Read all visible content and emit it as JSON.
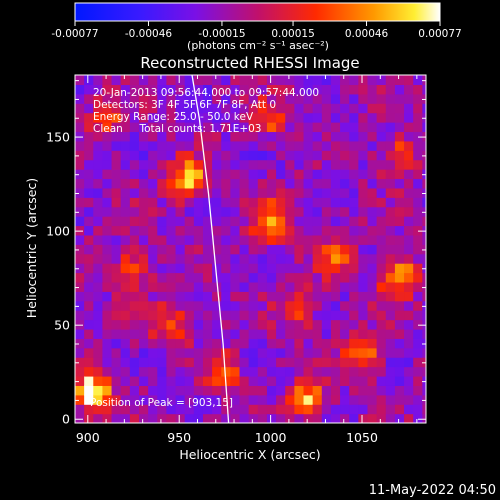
{
  "colorbar": {
    "ticks": [
      "-0.00077",
      "-0.00046",
      "-0.00015",
      "0.00015",
      "0.00046",
      "0.00077"
    ],
    "tick_values": [
      -0.00077,
      -0.00046,
      -0.00015,
      0.00015,
      0.00046,
      0.00077
    ],
    "range": [
      -0.00077,
      0.00077
    ],
    "unit_label": "(photons cm⁻² s⁻¹ asec⁻²)"
  },
  "chart_data": {
    "type": "heatmap",
    "title": "Reconstructed RHESSI Image",
    "xlabel": "Heliocentric X (arcsec)",
    "ylabel": "Heliocentric Y (arcsec)",
    "xlim": [
      893,
      1085
    ],
    "ylim": [
      -2,
      183
    ],
    "xticks": [
      900,
      950,
      1000,
      1050
    ],
    "yticks": [
      0,
      50,
      100,
      150
    ],
    "colormap": "blue-purple-red-yellow-white",
    "colorscale_range": [
      -0.00077,
      0.00077
    ],
    "bright_sources": [
      {
        "x": 903,
        "y": 15,
        "intensity": 0.00077
      },
      {
        "x": 955,
        "y": 128,
        "intensity": 0.00062
      },
      {
        "x": 1000,
        "y": 105,
        "intensity": 0.00055
      },
      {
        "x": 1070,
        "y": 75,
        "intensity": 0.00058
      },
      {
        "x": 1050,
        "y": 35,
        "intensity": 0.00048
      },
      {
        "x": 1020,
        "y": 10,
        "intensity": 0.00045
      },
      {
        "x": 1035,
        "y": 85,
        "intensity": 0.00036
      },
      {
        "x": 945,
        "y": 50,
        "intensity": 0.00035
      },
      {
        "x": 925,
        "y": 80,
        "intensity": 0.0003
      },
      {
        "x": 975,
        "y": 25,
        "intensity": 0.00032
      },
      {
        "x": 1015,
        "y": 60,
        "intensity": 0.00028
      },
      {
        "x": 1070,
        "y": 140,
        "intensity": 0.0003
      },
      {
        "x": 910,
        "y": 160,
        "intensity": 0.00026
      },
      {
        "x": 1000,
        "y": 160,
        "intensity": 0.00024
      }
    ],
    "limb_curve": {
      "x": [
        977,
        974,
        970,
        966,
        961,
        957
      ],
      "y": [
        -2,
        40,
        80,
        120,
        160,
        183
      ]
    },
    "annotations": [
      "20-Jan-2013 09:56:44.000 to 09:57:44.000",
      "Detectors: 3F 4F 5F 6F 7F 8F, Att 0",
      "Energy Range: 25.0 - 50.0 keV",
      "Clean     Total counts: 1.71E+03"
    ],
    "peak_label": "Position of Peak = [903,15]",
    "peak_position": [
      903,
      15
    ],
    "date_stamp": "11-May-2022 04:50"
  }
}
